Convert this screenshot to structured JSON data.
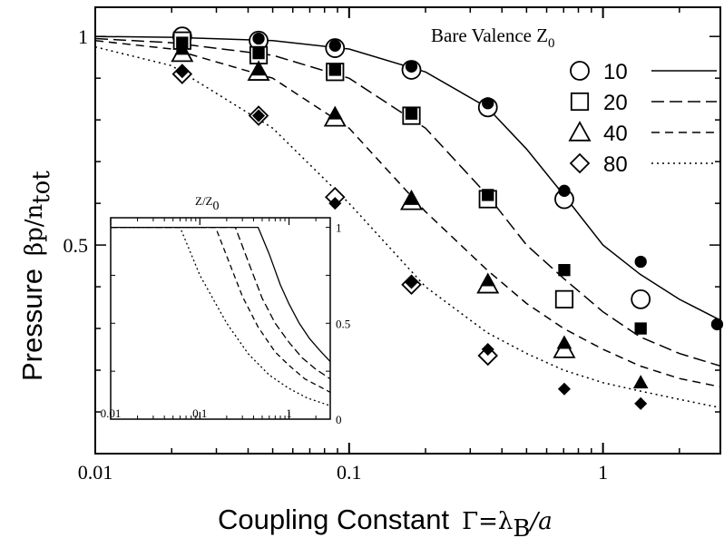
{
  "chart_data": [
    {
      "type": "line",
      "xlabel_text": "Coupling Constant",
      "xlabel_symbol": "Γ=λ",
      "xlabel_sub": "B",
      "xlabel_tail": "/a",
      "ylabel_text": "Pressure",
      "ylabel_symbol": "βp/n",
      "ylabel_sub": "tot",
      "xscale": "log",
      "xlim": [
        0.01,
        2.9
      ],
      "ylim": [
        0.0,
        1.07
      ],
      "xticks": [
        {
          "v": 0.01,
          "label": "0.01"
        },
        {
          "v": 0.1,
          "label": "0.1"
        },
        {
          "v": 1,
          "label": "1"
        }
      ],
      "yticks": [
        {
          "v": 0.5,
          "label": "0.5"
        },
        {
          "v": 1,
          "label": "1"
        }
      ],
      "legend": {
        "title": "Bare Valence Z",
        "title_sub": "0",
        "position": "top-right",
        "entries": [
          "10",
          "20",
          "40",
          "80"
        ]
      },
      "series": [
        {
          "name": "10",
          "marker": "circle",
          "dash": "",
          "curve_x": [
            0.01,
            0.02,
            0.05,
            0.1,
            0.2,
            0.35,
            0.5,
            0.7,
            1.0,
            1.4,
            2.0,
            2.9
          ],
          "curve_y": [
            1.0,
            0.998,
            0.99,
            0.97,
            0.915,
            0.83,
            0.73,
            0.62,
            0.5,
            0.43,
            0.37,
            0.32
          ],
          "open_x": [
            0.022,
            0.044,
            0.088,
            0.176,
            0.352,
            0.704,
            1.408
          ],
          "open_y": [
            1.0,
            0.99,
            0.972,
            0.92,
            0.83,
            0.61,
            0.37
          ],
          "filled_x": [
            0.044,
            0.088,
            0.176,
            0.352,
            0.704,
            1.408,
            2.816
          ],
          "filled_y": [
            0.995,
            0.978,
            0.928,
            0.84,
            0.63,
            0.46,
            0.31
          ]
        },
        {
          "name": "20",
          "marker": "square",
          "dash": "14,6",
          "curve_x": [
            0.01,
            0.02,
            0.05,
            0.1,
            0.2,
            0.35,
            0.5,
            0.7,
            1.0,
            1.4,
            2.0,
            2.9
          ],
          "curve_y": [
            0.995,
            0.985,
            0.955,
            0.9,
            0.78,
            0.62,
            0.5,
            0.42,
            0.34,
            0.28,
            0.24,
            0.21
          ],
          "open_x": [
            0.022,
            0.044,
            0.088,
            0.176,
            0.352,
            0.704
          ],
          "open_y": [
            0.99,
            0.955,
            0.915,
            0.81,
            0.61,
            0.37
          ],
          "filled_x": [
            0.022,
            0.044,
            0.088,
            0.176,
            0.352,
            0.704,
            1.408
          ],
          "filled_y": [
            0.985,
            0.96,
            0.92,
            0.815,
            0.62,
            0.44,
            0.3
          ]
        },
        {
          "name": "40",
          "marker": "triangle",
          "dash": "9,6",
          "curve_x": [
            0.01,
            0.02,
            0.05,
            0.1,
            0.2,
            0.35,
            0.5,
            0.7,
            1.0,
            1.4,
            2.0,
            2.9
          ],
          "curve_y": [
            0.99,
            0.97,
            0.9,
            0.78,
            0.58,
            0.44,
            0.36,
            0.3,
            0.25,
            0.21,
            0.18,
            0.16
          ],
          "open_x": [
            0.022,
            0.044,
            0.088,
            0.176,
            0.352,
            0.704
          ],
          "open_y": [
            0.96,
            0.915,
            0.805,
            0.605,
            0.405,
            0.25
          ],
          "filled_x": [
            0.022,
            0.044,
            0.088,
            0.176,
            0.352,
            0.704,
            1.408
          ],
          "filled_y": [
            0.97,
            0.92,
            0.815,
            0.61,
            0.415,
            0.265,
            0.17
          ]
        },
        {
          "name": "80",
          "marker": "diamond",
          "dash": "2,4",
          "curve_x": [
            0.01,
            0.02,
            0.05,
            0.1,
            0.2,
            0.35,
            0.5,
            0.7,
            1.0,
            1.4,
            2.0,
            2.9
          ],
          "curve_y": [
            0.975,
            0.93,
            0.78,
            0.6,
            0.4,
            0.29,
            0.24,
            0.2,
            0.17,
            0.15,
            0.13,
            0.11
          ],
          "open_x": [
            0.022,
            0.044,
            0.088,
            0.176,
            0.352
          ],
          "open_y": [
            0.91,
            0.81,
            0.615,
            0.405,
            0.235
          ],
          "filled_x": [
            0.022,
            0.044,
            0.088,
            0.176,
            0.352,
            0.704,
            1.408
          ],
          "filled_y": [
            0.915,
            0.81,
            0.6,
            0.41,
            0.25,
            0.155,
            0.12
          ]
        }
      ]
    },
    {
      "type": "line",
      "title": "Z/Z",
      "title_sub": "0",
      "xscale": "log",
      "xlim": [
        0.01,
        2.9
      ],
      "ylim": [
        0.0,
        1.05
      ],
      "xticks": [
        {
          "v": 0.01,
          "label": "0.01"
        },
        {
          "v": 0.1,
          "label": "0.1"
        },
        {
          "v": 1,
          "label": "1"
        }
      ],
      "yticks": [
        {
          "v": 0,
          "label": "0"
        },
        {
          "v": 0.5,
          "label": "0.5"
        },
        {
          "v": 1,
          "label": "1"
        }
      ],
      "series": [
        {
          "name": "10",
          "dash": "",
          "x": [
            0.01,
            0.45,
            0.6,
            0.8,
            1.0,
            1.3,
            1.7,
            2.2,
            2.9
          ],
          "y": [
            1.0,
            1.0,
            0.86,
            0.7,
            0.6,
            0.5,
            0.42,
            0.36,
            0.3
          ]
        },
        {
          "name": "20",
          "dash": "8,4",
          "x": [
            0.01,
            0.25,
            0.35,
            0.5,
            0.7,
            1.0,
            1.4,
            2.0,
            2.9
          ],
          "y": [
            1.0,
            1.0,
            0.82,
            0.63,
            0.5,
            0.4,
            0.32,
            0.26,
            0.21
          ]
        },
        {
          "name": "40",
          "dash": "6,4",
          "x": [
            0.01,
            0.15,
            0.2,
            0.3,
            0.45,
            0.7,
            1.0,
            1.5,
            2.2,
            2.9
          ],
          "y": [
            1.0,
            1.0,
            0.85,
            0.64,
            0.48,
            0.35,
            0.28,
            0.21,
            0.17,
            0.14
          ]
        },
        {
          "name": "80",
          "dash": "2,3",
          "x": [
            0.01,
            0.06,
            0.1,
            0.2,
            0.35,
            0.6,
            1.0,
            1.6,
            2.9
          ],
          "y": [
            1.0,
            1.0,
            0.75,
            0.5,
            0.34,
            0.23,
            0.16,
            0.11,
            0.07
          ]
        }
      ]
    }
  ]
}
